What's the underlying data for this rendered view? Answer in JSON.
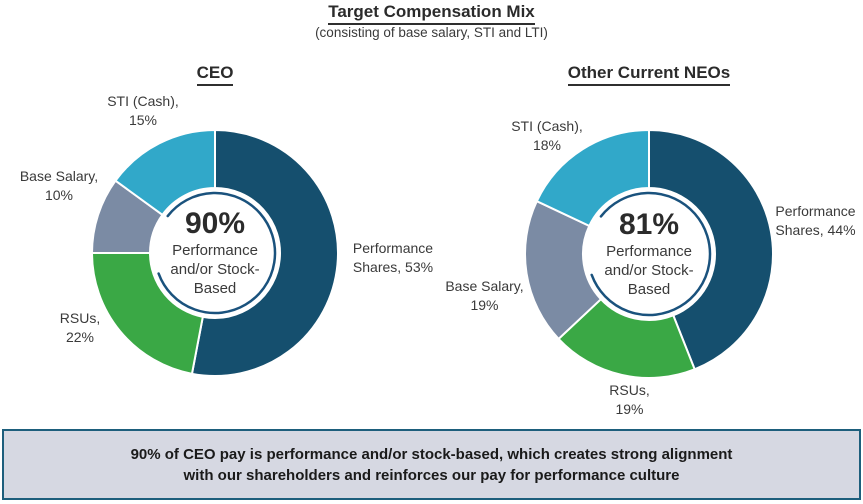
{
  "page": {
    "title": "Target Compensation Mix",
    "subtitle": "(consisting of base salary, STI and LTI)"
  },
  "banner": {
    "line1": "90% of CEO pay is performance and/or stock-based, which creates strong alignment",
    "line2": "with our shareholders and reinforces our pay for performance culture"
  },
  "colors": {
    "performance_shares": "#154F6E",
    "rsus": "#3AA845",
    "base_salary": "#7B8BA4",
    "sti_cash": "#31A8C9",
    "inner_ring": "#1A527D",
    "slice_separator": "#FFFFFF",
    "banner_bg": "#D6D8E2",
    "banner_border": "#1D5E7C"
  },
  "chart_data": [
    {
      "type": "pie",
      "title": "CEO",
      "center": {
        "value": "90%",
        "lines": [
          "Performance",
          "and/or Stock-",
          "Based"
        ]
      },
      "slices": [
        {
          "label": "Performance Shares",
          "value": 53,
          "color": "#154F6E",
          "pct_label_lines": [
            "Performance",
            "Shares, 53%"
          ]
        },
        {
          "label": "RSUs",
          "value": 22,
          "color": "#3AA845",
          "pct_label_lines": [
            "RSUs,",
            "22%"
          ]
        },
        {
          "label": "Base Salary",
          "value": 10,
          "color": "#7B8BA4",
          "pct_label_lines": [
            "Base Salary,",
            "10%"
          ]
        },
        {
          "label": "STI (Cash)",
          "value": 15,
          "color": "#31A8C9",
          "pct_label_lines": [
            "STI (Cash),",
            "15%"
          ]
        }
      ]
    },
    {
      "type": "pie",
      "title": "Other Current NEOs",
      "center": {
        "value": "81%",
        "lines": [
          "Performance",
          "and/or Stock-",
          "Based"
        ]
      },
      "slices": [
        {
          "label": "Performance Shares",
          "value": 44,
          "color": "#154F6E",
          "pct_label_lines": [
            "Performance",
            "Shares, 44%"
          ]
        },
        {
          "label": "RSUs",
          "value": 19,
          "color": "#3AA845",
          "pct_label_lines": [
            "RSUs,",
            "19%"
          ]
        },
        {
          "label": "Base Salary",
          "value": 19,
          "color": "#7B8BA4",
          "pct_label_lines": [
            "Base Salary,",
            "19%"
          ]
        },
        {
          "label": "STI (Cash)",
          "value": 18,
          "color": "#31A8C9",
          "pct_label_lines": [
            "STI (Cash),",
            "18%"
          ]
        }
      ]
    }
  ]
}
